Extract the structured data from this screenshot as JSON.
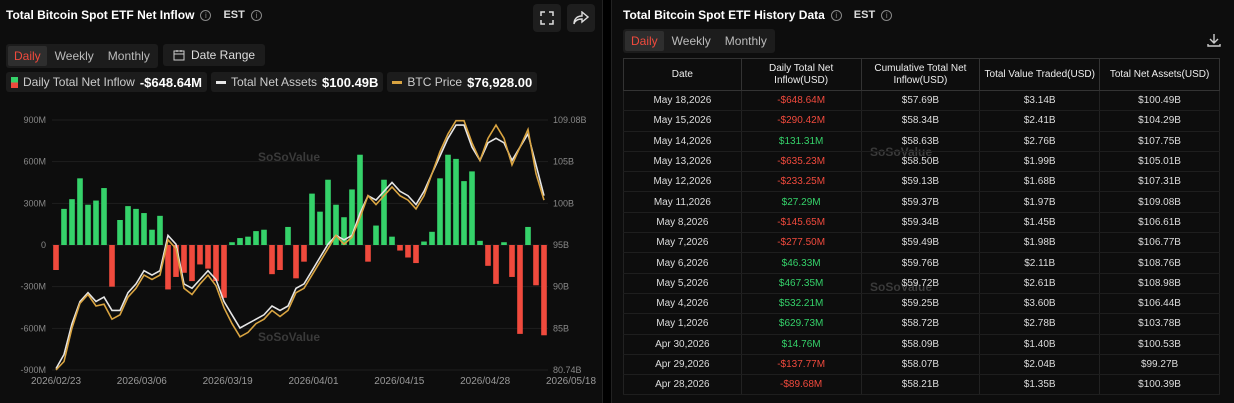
{
  "left": {
    "title": "Total Bitcoin Spot ETF Net Inflow",
    "tz": "EST",
    "tabs": [
      "Daily",
      "Weekly",
      "Monthly"
    ],
    "active_tab": "Daily",
    "date_range_label": "Date Range",
    "legend": [
      {
        "label": "Daily Total Net Inflow",
        "value": "-$648.64M"
      },
      {
        "label": "Total Net Assets",
        "value": "$100.49B"
      },
      {
        "label": "BTC Price",
        "value": "$76,928.00"
      }
    ],
    "watermark": "SoSoValue"
  },
  "right": {
    "title": "Total Bitcoin Spot ETF History Data",
    "tz": "EST",
    "tabs": [
      "Daily",
      "Weekly",
      "Monthly"
    ],
    "active_tab": "Daily",
    "columns": [
      "Date",
      "Daily Total Net Inflow(USD)",
      "Cumulative Total Net Inflow(USD)",
      "Total Value Traded(USD)",
      "Total Net Assets(USD)"
    ],
    "rows": [
      [
        "May 18,2026",
        "-$648.64M",
        "$57.69B",
        "$3.14B",
        "$100.49B"
      ],
      [
        "May 15,2026",
        "-$290.42M",
        "$58.34B",
        "$2.41B",
        "$104.29B"
      ],
      [
        "May 14,2026",
        "$131.31M",
        "$58.63B",
        "$2.76B",
        "$107.75B"
      ],
      [
        "May 13,2026",
        "-$635.23M",
        "$58.50B",
        "$1.99B",
        "$105.01B"
      ],
      [
        "May 12,2026",
        "-$233.25M",
        "$59.13B",
        "$1.68B",
        "$107.31B"
      ],
      [
        "May 11,2026",
        "$27.29M",
        "$59.37B",
        "$1.97B",
        "$109.08B"
      ],
      [
        "May 8,2026",
        "-$145.65M",
        "$59.34B",
        "$1.45B",
        "$106.61B"
      ],
      [
        "May 7,2026",
        "-$277.50M",
        "$59.49B",
        "$1.98B",
        "$106.77B"
      ],
      [
        "May 6,2026",
        "$46.33M",
        "$59.76B",
        "$2.11B",
        "$108.76B"
      ],
      [
        "May 5,2026",
        "$467.35M",
        "$59.72B",
        "$2.61B",
        "$108.98B"
      ],
      [
        "May 4,2026",
        "$532.21M",
        "$59.25B",
        "$3.60B",
        "$106.44B"
      ],
      [
        "May 1,2026",
        "$629.73M",
        "$58.72B",
        "$2.78B",
        "$103.78B"
      ],
      [
        "Apr 30,2026",
        "$14.76M",
        "$58.09B",
        "$1.40B",
        "$100.53B"
      ],
      [
        "Apr 29,2026",
        "-$137.77M",
        "$58.07B",
        "$2.04B",
        "$99.27B"
      ],
      [
        "Apr 28,2026",
        "-$89.68M",
        "$58.21B",
        "$1.35B",
        "$100.39B"
      ]
    ]
  },
  "colors": {
    "positive": "#35d26a",
    "negative": "#f04a3d",
    "accent": "#f04a3d",
    "btc_line": "#d9a441",
    "assets_line": "#e6e6e6"
  },
  "chart_data": {
    "type": "bar",
    "y_left_ticks": [
      "900M",
      "600M",
      "300M",
      "0",
      "-300M",
      "-600M",
      "-900M"
    ],
    "y_right_ticks": [
      "109.08B",
      "105B",
      "100B",
      "95B",
      "90B",
      "85B",
      "80.74B"
    ],
    "x_ticks": [
      "2026/02/23",
      "2026/03/06",
      "2026/03/19",
      "2026/04/01",
      "2026/04/15",
      "2026/04/28",
      "2026/05/18"
    ],
    "ylim_left": [
      -900,
      900
    ],
    "ylim_right": [
      80.74,
      109.08
    ],
    "net_inflow_millions": [
      -180,
      260,
      330,
      480,
      290,
      320,
      410,
      -300,
      180,
      280,
      260,
      230,
      110,
      210,
      -320,
      -230,
      -200,
      -260,
      -140,
      -170,
      -260,
      -380,
      20,
      50,
      60,
      100,
      110,
      -210,
      -180,
      130,
      -240,
      -120,
      370,
      240,
      470,
      290,
      200,
      400,
      650,
      -120,
      140,
      470,
      60,
      -40,
      -90,
      -130,
      25,
      95,
      480,
      650,
      620,
      460,
      530,
      30,
      -150,
      -280,
      20,
      -230,
      -640,
      130,
      -290,
      -650
    ],
    "total_net_assets_billions": [
      80.9,
      82.5,
      86.0,
      88.5,
      89.5,
      88.5,
      89.0,
      87.5,
      87.5,
      89.5,
      90.5,
      92.0,
      91.5,
      92.0,
      96.0,
      95.0,
      90.5,
      90.0,
      91.0,
      92.0,
      91.0,
      88.5,
      87.0,
      85.5,
      86.0,
      86.5,
      87.0,
      88.0,
      87.5,
      88.0,
      90.0,
      90.5,
      92.0,
      93.5,
      95.0,
      96.0,
      95.5,
      96.0,
      98.5,
      100.5,
      100.0,
      101.0,
      102.0,
      101.0,
      100.5,
      99.5,
      101.0,
      103.0,
      105.0,
      107.0,
      108.5,
      108.5,
      106.0,
      104.5,
      106.5,
      107.0,
      106.5,
      104.5,
      106.0,
      107.5,
      104.0,
      100.5
    ],
    "btc_price_scaled": [
      80.74,
      81.7,
      85.5,
      88.3,
      89.3,
      88.0,
      88.2,
      86.5,
      87.0,
      89.0,
      90.0,
      91.5,
      91.0,
      91.5,
      95.5,
      94.5,
      90.0,
      89.3,
      90.5,
      91.5,
      90.3,
      87.8,
      86.0,
      84.5,
      85.0,
      86.0,
      86.5,
      87.5,
      86.8,
      87.5,
      89.5,
      90.0,
      91.5,
      93.0,
      94.5,
      96.0,
      95.0,
      95.8,
      98.0,
      100.5,
      99.5,
      100.5,
      101.5,
      100.5,
      100.0,
      99.0,
      100.5,
      103.0,
      105.5,
      107.5,
      109.0,
      109.0,
      106.5,
      104.5,
      107.0,
      108.5,
      107.0,
      104.0,
      106.0,
      108.0,
      103.0,
      100.0
    ]
  }
}
